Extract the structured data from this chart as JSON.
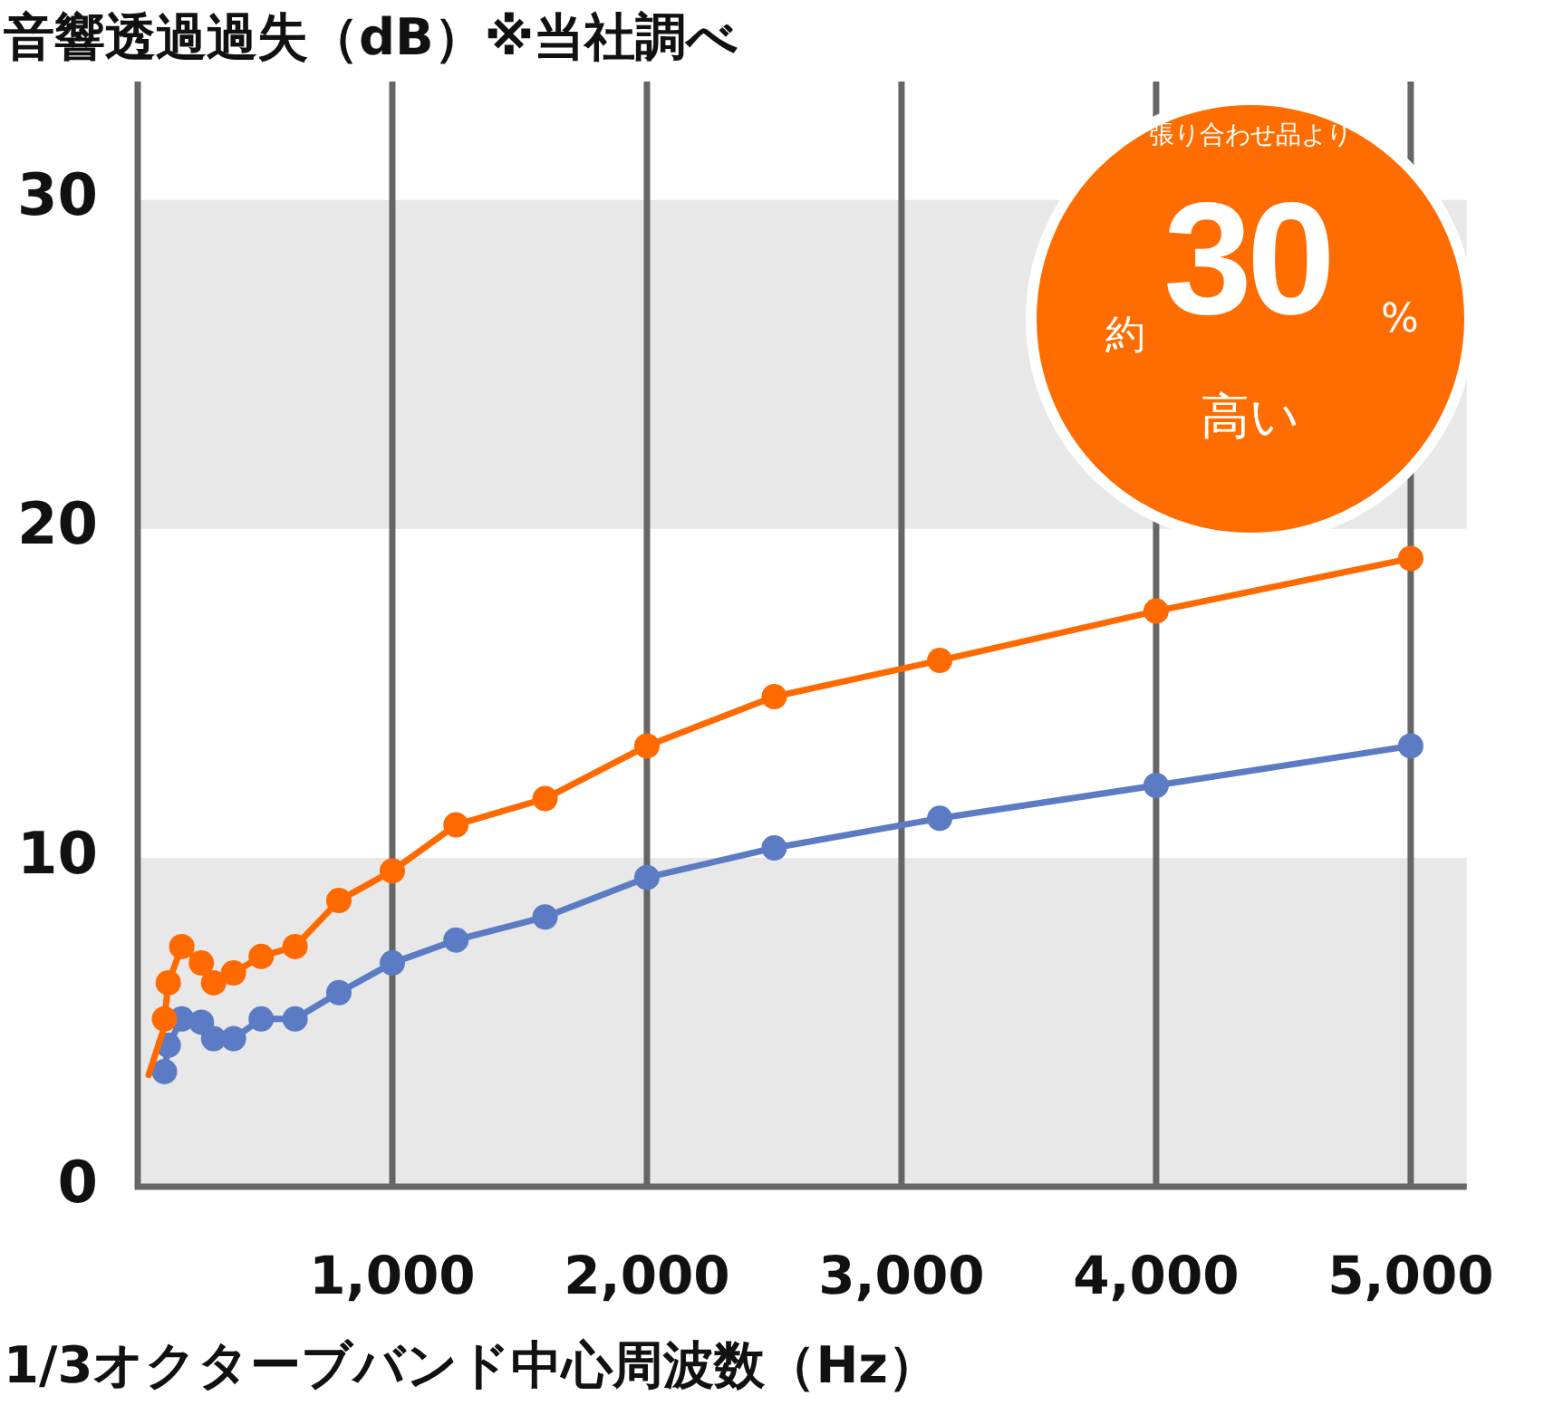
{
  "chart_data": {
    "type": "line",
    "title": "音響透過過失（dB）※当社調べ",
    "xlabel": "1/3オクターブバンド中心周波数（Hz）",
    "annotations": [
      "張り合わせ品より",
      "約",
      "30",
      "%",
      "高い"
    ],
    "x": [
      105,
      120,
      173,
      250,
      298,
      376,
      485,
      618,
      790,
      1000,
      1250,
      1600,
      2000,
      2500,
      3150,
      4000,
      5000
    ],
    "series": [
      {
        "type": "line",
        "color": "#ff6a00",
        "x": [
          43,
          98
        ],
        "values": [
          3.4,
          4.7
        ],
        "marker": "none"
      },
      {
        "color": "#ff6a00",
        "values": [
          5.1,
          6.2,
          7.3,
          6.8,
          6.2,
          6.5,
          7.0,
          7.3,
          8.7,
          9.6,
          11.0,
          11.8,
          13.4,
          14.9,
          16.0,
          17.5,
          19.1
        ]
      },
      {
        "color": "#5b7bc4",
        "values": [
          3.5,
          4.3,
          5.1,
          5.0,
          4.5,
          4.5,
          5.1,
          5.1,
          5.9,
          6.8,
          7.5,
          8.2,
          9.4,
          10.3,
          11.2,
          12.2,
          13.4
        ]
      }
    ],
    "xlim": [
      0,
      5220
    ],
    "xticks": [
      {
        "value": 1000,
        "label": "1,000"
      },
      {
        "value": 2000,
        "label": "2,000"
      },
      {
        "value": 3000,
        "label": "3,000"
      },
      {
        "value": 4000,
        "label": "4,000"
      },
      {
        "value": 5000,
        "label": "5,000"
      }
    ],
    "ylim": [
      0,
      33.6
    ],
    "yticks": [
      0,
      10,
      20,
      30
    ],
    "bands": [
      {
        "axis": "y",
        "from": 0,
        "to": 10,
        "color": "#e8e8e8"
      },
      {
        "axis": "y",
        "from": 20,
        "to": 30,
        "color": "#e8e8e8"
      }
    ],
    "grid": "x",
    "marker": "circle",
    "line_style": "solid"
  }
}
